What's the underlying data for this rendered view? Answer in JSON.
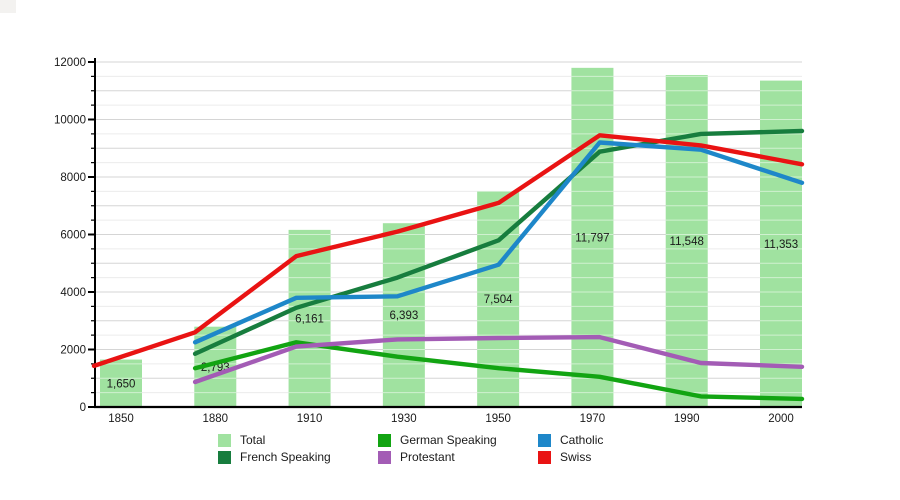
{
  "chart_data": {
    "type": "bar+line",
    "title": "",
    "categories": [
      "1850",
      "1880",
      "1910",
      "1930",
      "1950",
      "1970",
      "1990",
      "2000"
    ],
    "bar_series": {
      "name": "Total",
      "color": "#a0e2a0",
      "values": [
        1650,
        2793,
        6161,
        6393,
        7504,
        11797,
        11548,
        11353
      ],
      "value_labels": [
        "1,650",
        "2,793",
        "6,161",
        "6,393",
        "7,504",
        "11,797",
        "11,548",
        "11,353"
      ]
    },
    "line_series": [
      {
        "name": "French Speaking",
        "color": "#177d3e",
        "values": [
          null,
          1850,
          3450,
          4500,
          5800,
          8880,
          9500,
          9600
        ]
      },
      {
        "name": "German Speaking",
        "color": "#12a412",
        "values": [
          null,
          1350,
          2250,
          1750,
          1350,
          1050,
          370,
          280
        ]
      },
      {
        "name": "Protestant",
        "color": "#a35cb5",
        "values": [
          null,
          870,
          2100,
          2350,
          2400,
          2430,
          1530,
          1400
        ]
      },
      {
        "name": "Catholic",
        "color": "#1e87c9",
        "values": [
          null,
          2250,
          3800,
          3850,
          4950,
          9200,
          8950,
          7800
        ]
      },
      {
        "name": "Swiss",
        "color": "#e91313",
        "values": [
          1430,
          2600,
          5250,
          6100,
          7100,
          9450,
          9100,
          8440
        ]
      }
    ],
    "xlabel": "",
    "ylabel": "",
    "ylim": [
      0,
      12000
    ],
    "y_labeled_tick_step": 2000,
    "y_major_grid_step": 1000,
    "y_minor_grid_step": 500,
    "y_tick_labels": [
      "0",
      "2000",
      "4000",
      "6000",
      "8000",
      "10000",
      "12000"
    ],
    "grid": "on",
    "legend_position": "bottom",
    "legend": [
      {
        "label": "Total",
        "color": "#a0e2a0"
      },
      {
        "label": "French Speaking",
        "color": "#177d3e"
      },
      {
        "label": "German Speaking",
        "color": "#12a412"
      },
      {
        "label": "Protestant",
        "color": "#a35cb5"
      },
      {
        "label": "Catholic",
        "color": "#1e87c9"
      },
      {
        "label": "Swiss",
        "color": "#e91313"
      }
    ]
  }
}
